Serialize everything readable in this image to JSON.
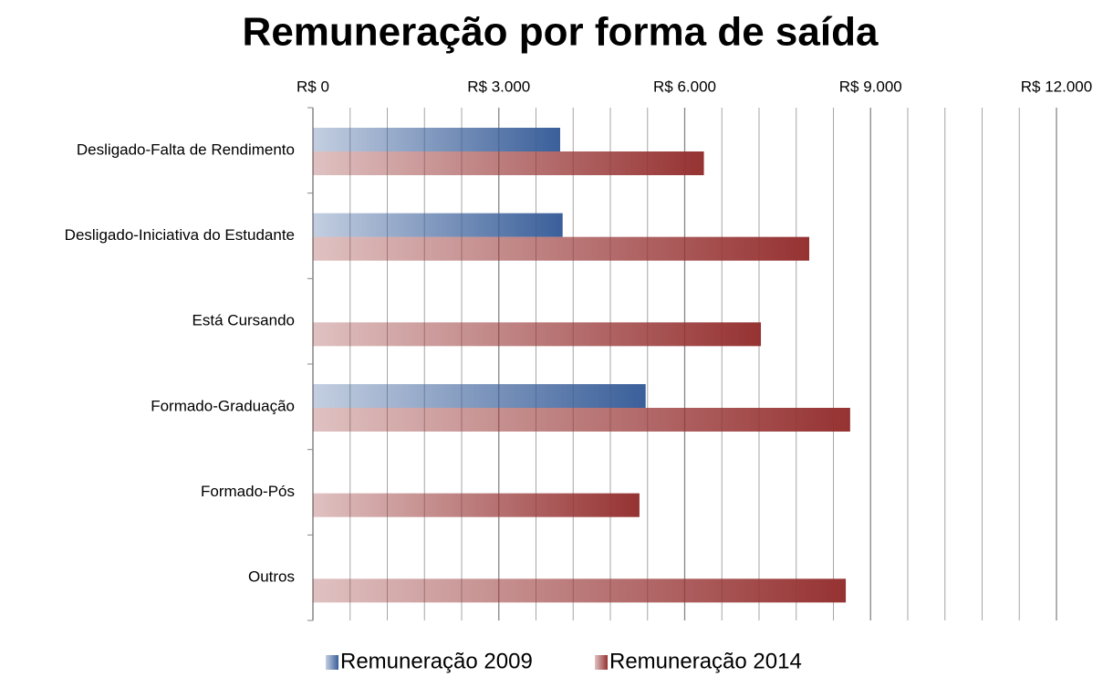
{
  "chart_data": {
    "type": "hbar",
    "title": "Remuneração por forma de saída",
    "categories": [
      "Desligado-Falta de Rendimento",
      "Desligado-Iniciativa do Estudante",
      "Está Cursando",
      "Formado-Graduação",
      "Formado-Pós",
      "Outros"
    ],
    "series": [
      {
        "name": "Remuneração 2009",
        "color": "#3a5f9a",
        "values": [
          3990,
          4030,
          null,
          5370,
          null,
          null
        ]
      },
      {
        "name": "Remuneração 2014",
        "color": "#963232",
        "values": [
          6310,
          8010,
          7230,
          8670,
          5270,
          8600
        ]
      }
    ],
    "xlim": [
      0,
      12000
    ],
    "xticks": [
      {
        "value": 0,
        "label": "R$ 0"
      },
      {
        "value": 3000,
        "label": "R$ 3.000"
      },
      {
        "value": 6000,
        "label": "R$ 6.000"
      },
      {
        "value": 9000,
        "label": "R$ 9.000"
      },
      {
        "value": 12000,
        "label": "R$ 12.000"
      }
    ],
    "xminorticks": [
      600,
      1200,
      1800,
      2400,
      3600,
      4200,
      4800,
      5400,
      6600,
      7200,
      7800,
      8400,
      9600,
      10200,
      10800,
      11400
    ],
    "grid": true,
    "legend": "bottom"
  }
}
